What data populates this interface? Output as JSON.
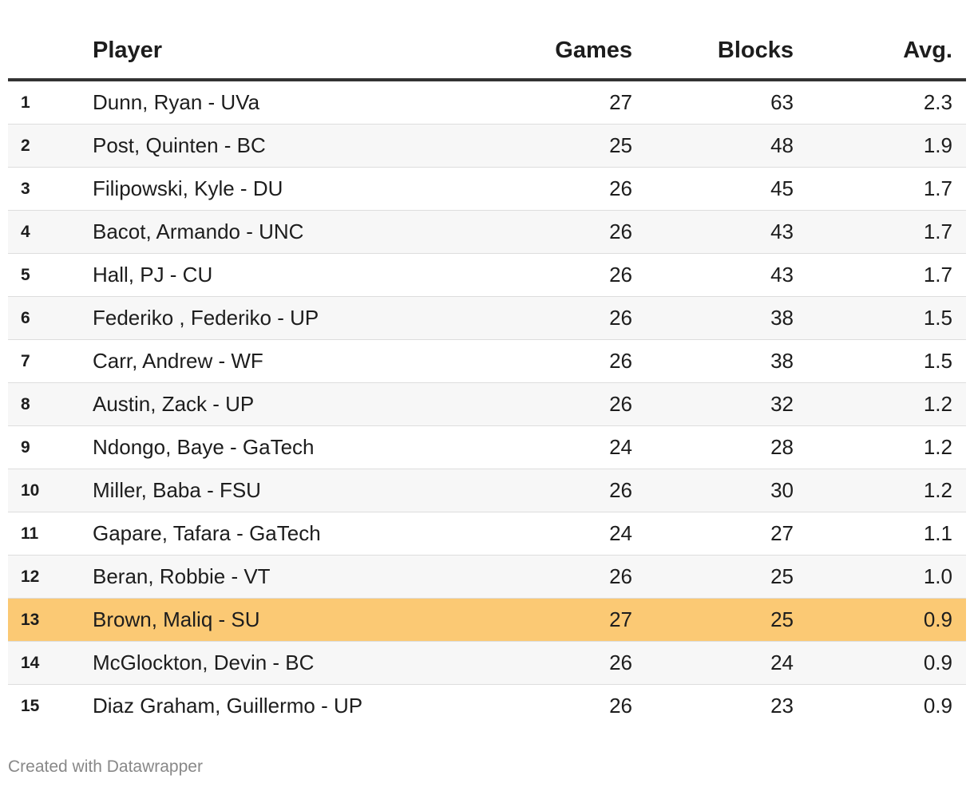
{
  "chart_data": {
    "type": "table",
    "columns": [
      "",
      "Player",
      "Games",
      "Blocks",
      "Avg."
    ],
    "rows": [
      {
        "rank": "1",
        "player": "Dunn, Ryan - UVa",
        "games": "27",
        "blocks": "63",
        "avg": "2.3"
      },
      {
        "rank": "2",
        "player": "Post, Quinten - BC",
        "games": "25",
        "blocks": "48",
        "avg": "1.9"
      },
      {
        "rank": "3",
        "player": "Filipowski, Kyle - DU",
        "games": "26",
        "blocks": "45",
        "avg": "1.7"
      },
      {
        "rank": "4",
        "player": "Bacot, Armando - UNC",
        "games": "26",
        "blocks": "43",
        "avg": "1.7"
      },
      {
        "rank": "5",
        "player": "Hall, PJ - CU",
        "games": "26",
        "blocks": "43",
        "avg": "1.7"
      },
      {
        "rank": "6",
        "player": "Federiko , Federiko - UP",
        "games": "26",
        "blocks": "38",
        "avg": "1.5"
      },
      {
        "rank": "7",
        "player": "Carr, Andrew - WF",
        "games": "26",
        "blocks": "38",
        "avg": "1.5"
      },
      {
        "rank": "8",
        "player": "Austin, Zack - UP",
        "games": "26",
        "blocks": "32",
        "avg": "1.2"
      },
      {
        "rank": "9",
        "player": "Ndongo, Baye - GaTech",
        "games": "24",
        "blocks": "28",
        "avg": "1.2"
      },
      {
        "rank": "10",
        "player": "Miller, Baba - FSU",
        "games": "26",
        "blocks": "30",
        "avg": "1.2"
      },
      {
        "rank": "11",
        "player": "Gapare, Tafara - GaTech",
        "games": "24",
        "blocks": "27",
        "avg": "1.1"
      },
      {
        "rank": "12",
        "player": "Beran, Robbie - VT",
        "games": "26",
        "blocks": "25",
        "avg": "1.0"
      },
      {
        "rank": "13",
        "player": "Brown, Maliq - SU",
        "games": "27",
        "blocks": "25",
        "avg": "0.9"
      },
      {
        "rank": "14",
        "player": "McGlockton, Devin - BC",
        "games": "26",
        "blocks": "24",
        "avg": "0.9"
      },
      {
        "rank": "15",
        "player": "Diaz Graham, Guillermo - UP",
        "games": "26",
        "blocks": "23",
        "avg": "0.9"
      }
    ],
    "highlight_row": 12,
    "highlight_color": "#fbc974"
  },
  "footer": "Created with Datawrapper"
}
